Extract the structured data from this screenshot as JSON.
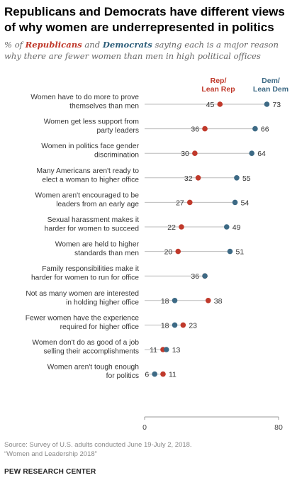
{
  "title": "Republicans and Democrats have different views of why women are underrepresented  in politics",
  "subtitle": {
    "prefix": "% of ",
    "rep": "Republicans",
    "and": " and ",
    "dem": "Democrats",
    "suffix": " saying each is a major reason why there are fewer women than men in high political offices"
  },
  "legend": {
    "rep": [
      "Rep/",
      "Lean Rep"
    ],
    "dem": [
      "Dem/",
      "Lean Dem"
    ]
  },
  "colors": {
    "rep": "#c0392b",
    "dem": "#3d6a85",
    "line": "#bbbbbb",
    "axis": "#999999"
  },
  "source": {
    "line1": "Source: Survey of U.S. adults conducted June 19-July 2, 2018.",
    "line2": "“Women and Leadership 2018”"
  },
  "brand": "PEW RESEARCH CENTER",
  "chart_data": {
    "type": "dot plot",
    "xlim": [
      0,
      80
    ],
    "ticks": [
      0,
      80
    ],
    "series": [
      {
        "name": "Rep/Lean Rep",
        "key": "rep"
      },
      {
        "name": "Dem/Lean Dem",
        "key": "dem"
      }
    ],
    "categories": [
      {
        "label": [
          "Women have to do more to prove",
          "themselves than men"
        ],
        "rep": 45,
        "dem": 73
      },
      {
        "label": [
          "Women get less support from",
          "party leaders"
        ],
        "rep": 36,
        "dem": 66
      },
      {
        "label": [
          "Women in politics face gender",
          "discrimination"
        ],
        "rep": 30,
        "dem": 64
      },
      {
        "label": [
          "Many Americans aren't ready to",
          "elect a woman to higher office"
        ],
        "rep": 32,
        "dem": 55
      },
      {
        "label": [
          "Women aren't encouraged to be",
          "leaders from an early age"
        ],
        "rep": 27,
        "dem": 54
      },
      {
        "label": [
          "Sexual harassment makes it",
          "harder for women to succeed"
        ],
        "rep": 22,
        "dem": 49
      },
      {
        "label": [
          "Women are held to higher",
          "standards than men"
        ],
        "rep": 20,
        "dem": 51
      },
      {
        "label": [
          "Family responsibilities make it",
          "harder for women to run for office"
        ],
        "rep": 36,
        "dem": 36
      },
      {
        "label": [
          "Not as many women are interested",
          "in holding higher office"
        ],
        "rep": 38,
        "dem": 18
      },
      {
        "label": [
          "Fewer women have the experience",
          "required for higher office"
        ],
        "rep": 23,
        "dem": 18
      },
      {
        "label": [
          "Women don't do as good of a job",
          "selling their accomplishments"
        ],
        "rep": 11,
        "dem": 13
      },
      {
        "label": [
          "Women aren't tough enough",
          "for politics"
        ],
        "rep": 11,
        "dem": 6
      }
    ]
  }
}
